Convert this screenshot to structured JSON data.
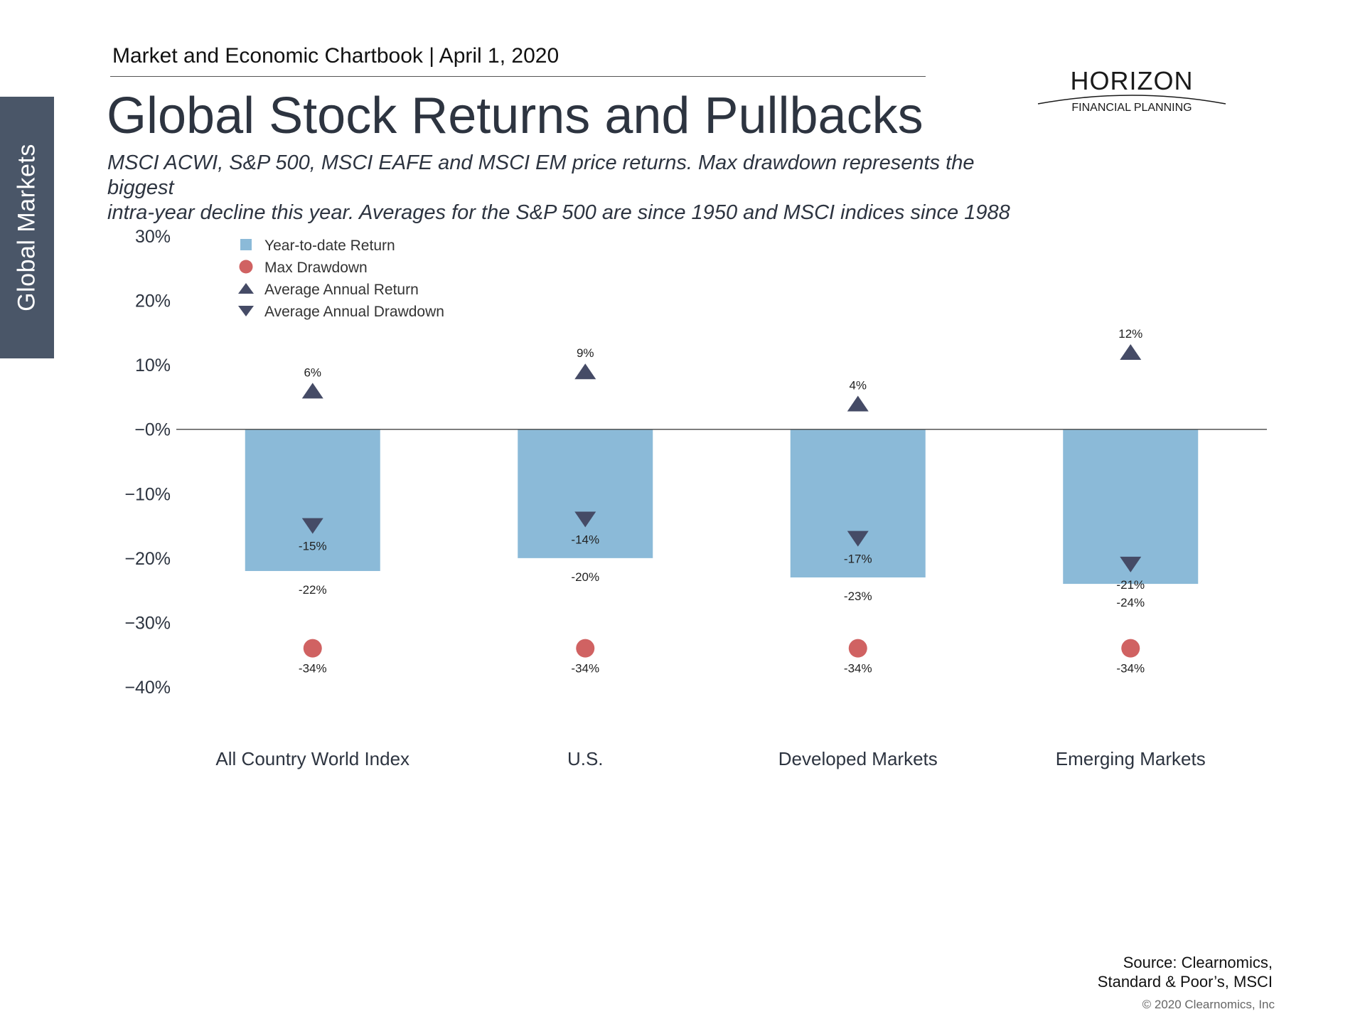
{
  "header": {
    "chartbook": "Market and Economic Chartbook | April 1, 2020",
    "side_tab": "Global Markets",
    "title": "Global Stock Returns and Pullbacks",
    "subtitle_line1": "MSCI ACWI, S&P 500, MSCI EAFE and MSCI EM price returns. Max drawdown represents the biggest",
    "subtitle_line2": "intra-year decline this year. Averages for the S&P 500 are since 1950 and MSCI indices since 1988"
  },
  "logo": {
    "name": "HORIZON",
    "tagline": "FINANCIAL PLANNING"
  },
  "footer": {
    "source_line1": "Source: Clearnomics,",
    "source_line2": "Standard & Poor’s, MSCI",
    "copyright": "© 2020 Clearnomics, Inc"
  },
  "colors": {
    "bar": "#8bbad8",
    "drawdown_dot": "#d06262",
    "triangle": "#454b66",
    "zero_line": "#555555"
  },
  "chart_data": {
    "type": "bar",
    "ylim": [
      -40,
      30
    ],
    "yticks": [
      30,
      20,
      10,
      0,
      -10,
      -20,
      -30,
      -40
    ],
    "ytick_labels": [
      "30%",
      "20%",
      "10%",
      "−0%",
      "−10%",
      "−20%",
      "−30%",
      "−40%"
    ],
    "categories": [
      "All Country World Index",
      "U.S.",
      "Developed Markets",
      "Emerging Markets"
    ],
    "legend_position": "top-left",
    "series": [
      {
        "name": "Year-to-date Return",
        "marker": "bar",
        "values": [
          -22,
          -20,
          -23,
          -24
        ],
        "labels": [
          "-22%",
          "-20%",
          "-23%",
          "-24%"
        ]
      },
      {
        "name": "Max Drawdown",
        "marker": "circle",
        "values": [
          -34,
          -34,
          -34,
          -34
        ],
        "labels": [
          "-34%",
          "-34%",
          "-34%",
          "-34%"
        ]
      },
      {
        "name": "Average Annual Return",
        "marker": "triangle-up",
        "values": [
          6,
          9,
          4,
          12
        ],
        "labels": [
          "6%",
          "9%",
          "4%",
          "12%"
        ]
      },
      {
        "name": "Average Annual Drawdown",
        "marker": "triangle-down",
        "values": [
          -15,
          -14,
          -17,
          -21
        ],
        "labels": [
          "-15%",
          "-14%",
          "-17%",
          "-21%"
        ]
      }
    ]
  }
}
